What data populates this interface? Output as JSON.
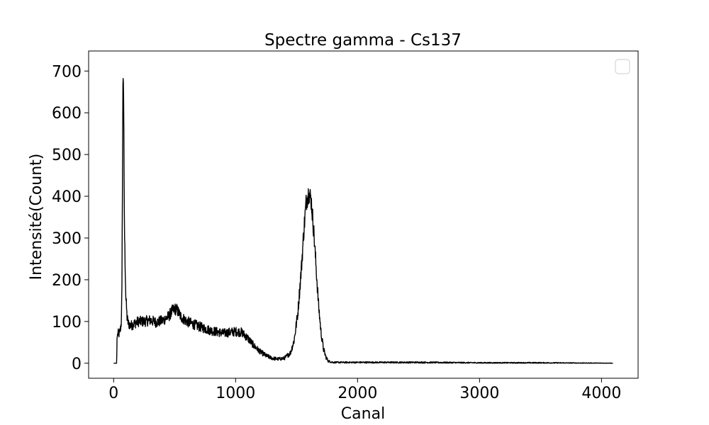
{
  "chart_data": {
    "type": "line",
    "title": "Spectre gamma  - Cs137",
    "xlabel": "Canal",
    "ylabel": "Intensité(Count)",
    "xlim": [
      -205,
      4300
    ],
    "ylim": [
      -36,
      748
    ],
    "xticks": [
      0,
      1000,
      2000,
      3000,
      4000
    ],
    "yticks": [
      0,
      100,
      200,
      300,
      400,
      500,
      600,
      700
    ],
    "grid": false,
    "legend": {
      "placement": "top-right",
      "entries": []
    },
    "colors": {
      "line": "#000000",
      "axes": "#000000",
      "legend_border": "#cccccc"
    },
    "series": [
      {
        "points": [
          [
            0,
            0
          ],
          [
            25,
            0
          ],
          [
            28,
            60
          ],
          [
            35,
            72
          ],
          [
            45,
            70
          ],
          [
            55,
            80
          ],
          [
            62,
            95
          ],
          [
            68,
            170
          ],
          [
            72,
            420
          ],
          [
            76,
            650
          ],
          [
            79,
            712
          ],
          [
            82,
            640
          ],
          [
            86,
            420
          ],
          [
            90,
            300
          ],
          [
            95,
            230
          ],
          [
            100,
            160
          ],
          [
            110,
            110
          ],
          [
            120,
            95
          ],
          [
            140,
            90
          ],
          [
            170,
            95
          ],
          [
            200,
            100
          ],
          [
            250,
            100
          ],
          [
            300,
            103
          ],
          [
            350,
            98
          ],
          [
            400,
            102
          ],
          [
            450,
            112
          ],
          [
            480,
            125
          ],
          [
            500,
            130
          ],
          [
            520,
            128
          ],
          [
            550,
            112
          ],
          [
            600,
            100
          ],
          [
            700,
            88
          ],
          [
            800,
            78
          ],
          [
            900,
            72
          ],
          [
            1000,
            76
          ],
          [
            1050,
            74
          ],
          [
            1100,
            60
          ],
          [
            1150,
            42
          ],
          [
            1200,
            28
          ],
          [
            1250,
            18
          ],
          [
            1300,
            12
          ],
          [
            1350,
            10
          ],
          [
            1400,
            12
          ],
          [
            1450,
            25
          ],
          [
            1480,
            55
          ],
          [
            1510,
            120
          ],
          [
            1540,
            230
          ],
          [
            1560,
            320
          ],
          [
            1580,
            390
          ],
          [
            1600,
            410
          ],
          [
            1620,
            390
          ],
          [
            1640,
            320
          ],
          [
            1660,
            230
          ],
          [
            1680,
            140
          ],
          [
            1700,
            75
          ],
          [
            1720,
            35
          ],
          [
            1740,
            15
          ],
          [
            1760,
            5
          ],
          [
            1800,
            2
          ],
          [
            2000,
            2
          ],
          [
            2500,
            2
          ],
          [
            3000,
            1
          ],
          [
            3500,
            1
          ],
          [
            4095,
            0
          ]
        ]
      }
    ]
  }
}
